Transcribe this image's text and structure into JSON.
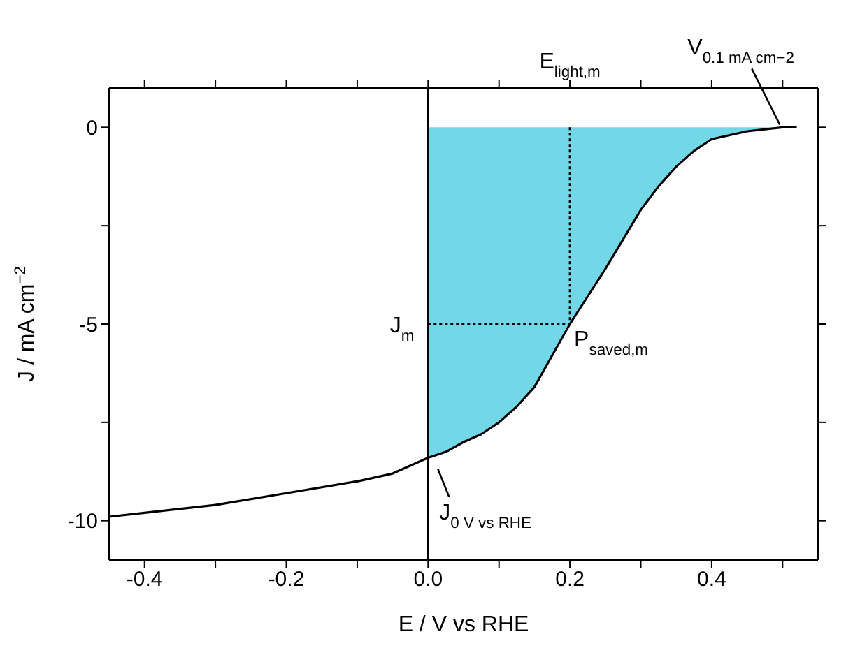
{
  "chart_data": {
    "type": "line",
    "xlabel": "E / V vs RHE",
    "ylabel": "J / mA cm$^{−2}$",
    "xlim": [
      -0.45,
      0.55
    ],
    "ylim": [
      -11,
      1
    ],
    "xticks": [
      -0.4,
      {
        "value": -0.3,
        "label": null
      },
      -0.2,
      {
        "value": -0.1,
        "label": null
      },
      {
        "value": 0,
        "label": "0.0"
      },
      {
        "value": 0.1,
        "label": null
      },
      0.2,
      {
        "value": 0.3,
        "label": null
      },
      0.4,
      {
        "value": 0.5,
        "label": null
      }
    ],
    "yticks": [
      -10,
      {
        "value": -7.5,
        "label": null
      },
      -5,
      {
        "value": -2.5,
        "label": null
      },
      0
    ],
    "ref_lines": [
      {
        "axis": "x",
        "value": 0,
        "color": "#000000"
      }
    ],
    "series": [
      {
        "type": "area",
        "color": "#72d8e8",
        "x": [
          0,
          0.025,
          0.05,
          0.075,
          0.1,
          0.125,
          0.15,
          0.175,
          0.2,
          0.25,
          0.275,
          0.3,
          0.325,
          0.35,
          0.375,
          0.4,
          0.45,
          0.5
        ],
        "values": [
          -8.4,
          -8.25,
          -8.0,
          -7.8,
          -7.5,
          -7.1,
          -6.6,
          -5.8,
          -5.0,
          -3.6,
          -2.85,
          -2.1,
          -1.5,
          -1.0,
          -0.6,
          -0.3,
          -0.1,
          0
        ]
      },
      {
        "color": "#000000",
        "line_style": "dotted",
        "x": [
          0,
          0.2
        ],
        "values": [
          -5,
          -5
        ]
      },
      {
        "color": "#000000",
        "line_style": "dotted",
        "x": [
          0.2,
          0.2
        ],
        "values": [
          0,
          -5
        ]
      },
      {
        "color": "#000000",
        "x": [
          -0.45,
          -0.4,
          -0.3,
          -0.2,
          -0.1,
          -0.05,
          0,
          0.025,
          0.05,
          0.075,
          0.1,
          0.125,
          0.15,
          0.175,
          0.2,
          0.25,
          0.275,
          0.3,
          0.325,
          0.35,
          0.375,
          0.4,
          0.45,
          0.5,
          0.52
        ],
        "values": [
          -9.9,
          -9.8,
          -9.6,
          -9.3,
          -9.0,
          -8.8,
          -8.4,
          -8.25,
          -8.0,
          -7.8,
          -7.5,
          -7.1,
          -6.6,
          -5.8,
          -5.0,
          -3.6,
          -2.85,
          -2.1,
          -1.5,
          -1.0,
          -0.6,
          -0.3,
          -0.1,
          0,
          0
        ]
      }
    ],
    "annotations": [
      "E$_{light,m}$",
      {
        "text": "V$_{0.1 mA cm−2}$",
        "x": 0.5,
        "y": 0
      },
      {
        "text": "J$_{m}$",
        "x": 0,
        "y": -5
      },
      {
        "text": "P$_{saved,m}$",
        "x": 0.2,
        "y": -5
      },
      {
        "text": "J$_{0 V vs RHE}$",
        "x": 0,
        "y": -8.4
      }
    ]
  }
}
